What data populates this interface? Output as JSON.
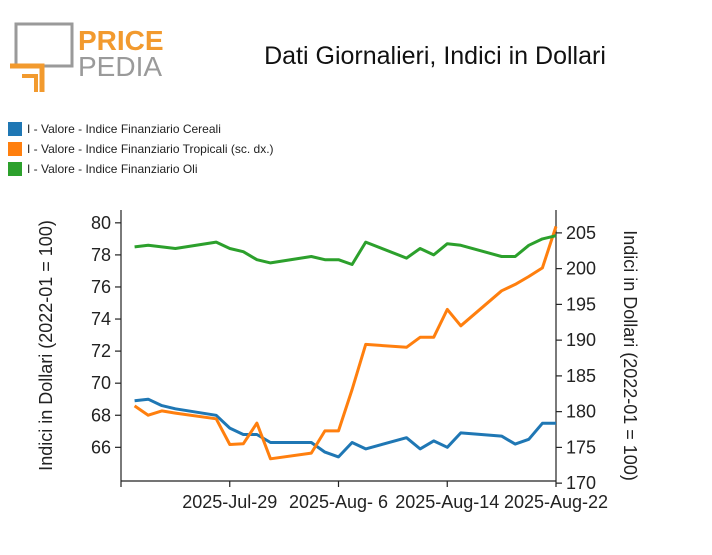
{
  "logo": {
    "word1": "PRICE",
    "word2": "PEDIA"
  },
  "colors": {
    "cereali": "#1f77b4",
    "tropicali": "#ff7f0e",
    "oli": "#2ca02c",
    "logo_orange": "#f29a2e",
    "logo_gray": "#9a9a9a"
  },
  "chart_data": {
    "type": "line",
    "title": "Dati Giornalieri, Indici in Dollari",
    "legend_position": "top-left",
    "grid": false,
    "x_tick_labels": [
      "2025-Jul-29",
      "2025-Aug- 6",
      "2025-Aug-14",
      "2025-Aug-22"
    ],
    "x": [
      "2025-07-22",
      "2025-07-23",
      "2025-07-24",
      "2025-07-25",
      "2025-07-28",
      "2025-07-29",
      "2025-07-30",
      "2025-07-31",
      "2025-08-01",
      "2025-08-04",
      "2025-08-05",
      "2025-08-06",
      "2025-08-07",
      "2025-08-08",
      "2025-08-11",
      "2025-08-12",
      "2025-08-13",
      "2025-08-14",
      "2025-08-15",
      "2025-08-18",
      "2025-08-19",
      "2025-08-20",
      "2025-08-21",
      "2025-08-22"
    ],
    "x_range": [
      "2025-07-21",
      "2025-08-22"
    ],
    "y_left": {
      "label": "Indici in Dollari (2022-01 = 100)",
      "ylim": [
        63.9,
        80.8
      ],
      "ticks": [
        66,
        68,
        70,
        72,
        74,
        76,
        78,
        80
      ]
    },
    "y_right": {
      "label": "Indici in Dollari (2022-01 = 100)",
      "ylim": [
        170.3,
        208.2
      ],
      "ticks": [
        170,
        175,
        180,
        185,
        190,
        195,
        200,
        205
      ]
    },
    "series": [
      {
        "name": "I - Valore - Indice Finanziario Cereali",
        "axis": "left",
        "values": [
          68.9,
          69.0,
          68.6,
          68.4,
          68.0,
          67.2,
          66.8,
          66.8,
          66.3,
          66.3,
          65.7,
          65.4,
          66.3,
          65.9,
          66.6,
          65.9,
          66.4,
          66.0,
          66.9,
          66.7,
          66.2,
          66.5,
          67.5,
          67.5
        ]
      },
      {
        "name": "I - Valore - Indice Finanziario Tropicali (sc. dx.)",
        "axis": "right",
        "values": [
          180.8,
          179.5,
          180.1,
          179.8,
          179.0,
          175.4,
          175.5,
          178.4,
          173.4,
          174.2,
          177.3,
          177.3,
          183.1,
          189.4,
          189.0,
          190.4,
          190.4,
          194.3,
          192.0,
          196.9,
          197.8,
          198.9,
          200.1,
          205.9
        ]
      },
      {
        "name": "I - Valore - Indice Finanziario Oli",
        "axis": "left",
        "values": [
          78.5,
          78.6,
          78.5,
          78.4,
          78.8,
          78.4,
          78.2,
          77.7,
          77.5,
          77.9,
          77.7,
          77.7,
          77.4,
          78.8,
          77.8,
          78.4,
          78.0,
          78.7,
          78.6,
          77.9,
          77.9,
          78.6,
          79.0,
          79.2
        ]
      }
    ]
  }
}
